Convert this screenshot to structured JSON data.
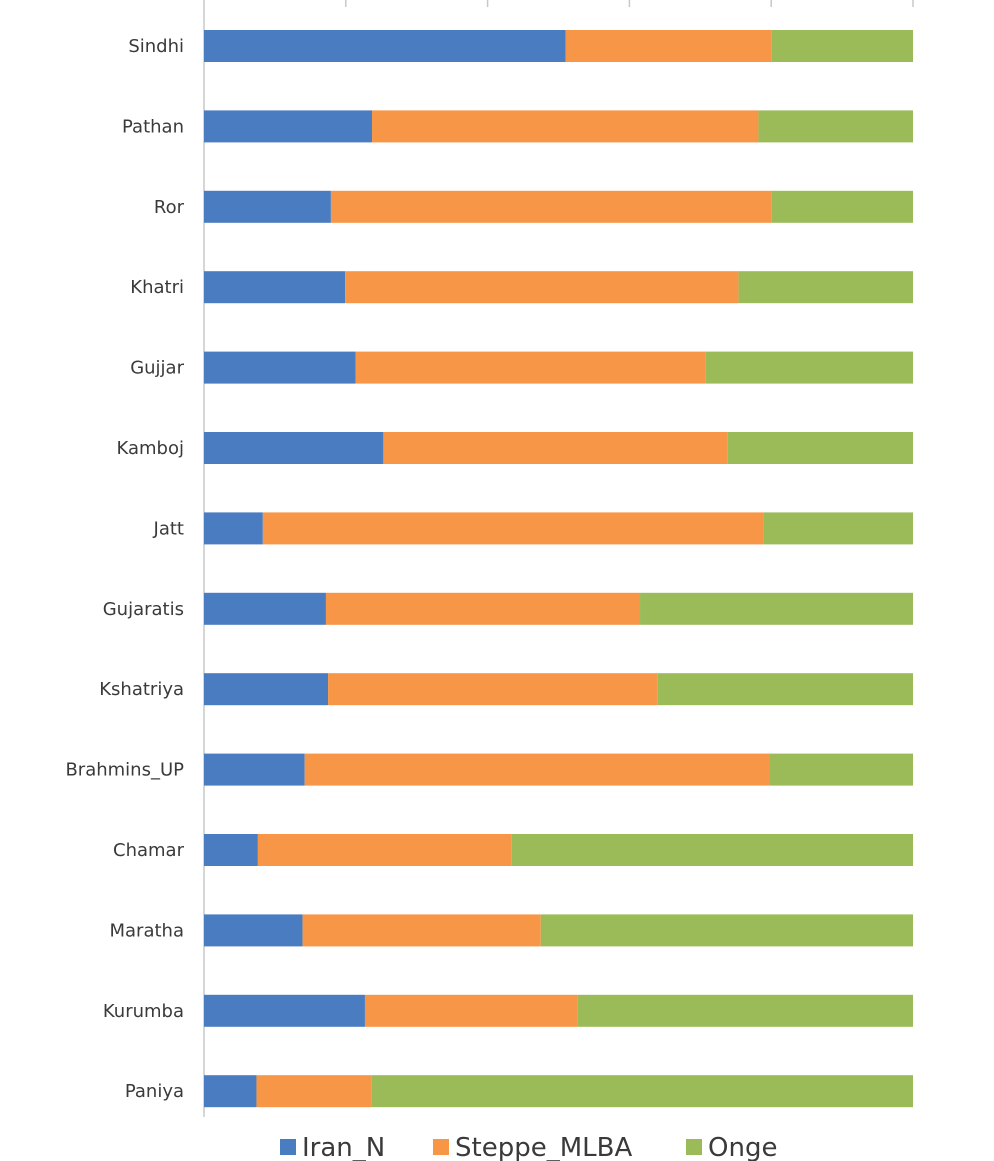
{
  "chart_data": {
    "type": "bar",
    "orientation": "horizontal",
    "stacked": true,
    "normalized": true,
    "xlim": [
      0,
      1
    ],
    "grid": false,
    "legend_position": "bottom",
    "categories": [
      "Sindhi",
      "Pathan",
      "Ror",
      "Khatri",
      "Gujjar",
      "Kamboj",
      "Jatt",
      "Gujaratis",
      "Kshatriya",
      "Brahmins_UP",
      "Chamar",
      "Maratha",
      "Kurumba",
      "Paniya"
    ],
    "series": [
      {
        "name": "Iran_N",
        "color": "#4a7cc1",
        "values": [
          0.51,
          0.237,
          0.179,
          0.199,
          0.214,
          0.253,
          0.083,
          0.172,
          0.175,
          0.142,
          0.076,
          0.139,
          0.227,
          0.074
        ]
      },
      {
        "name": "Steppe_MLBA",
        "color": "#f79646",
        "values": [
          0.29,
          0.545,
          0.621,
          0.555,
          0.493,
          0.485,
          0.706,
          0.443,
          0.465,
          0.655,
          0.358,
          0.336,
          0.3,
          0.162
        ]
      },
      {
        "name": "Onge",
        "color": "#9bbb59",
        "values": [
          0.2,
          0.218,
          0.2,
          0.246,
          0.293,
          0.262,
          0.211,
          0.385,
          0.36,
          0.203,
          0.566,
          0.525,
          0.473,
          0.764
        ]
      }
    ]
  }
}
